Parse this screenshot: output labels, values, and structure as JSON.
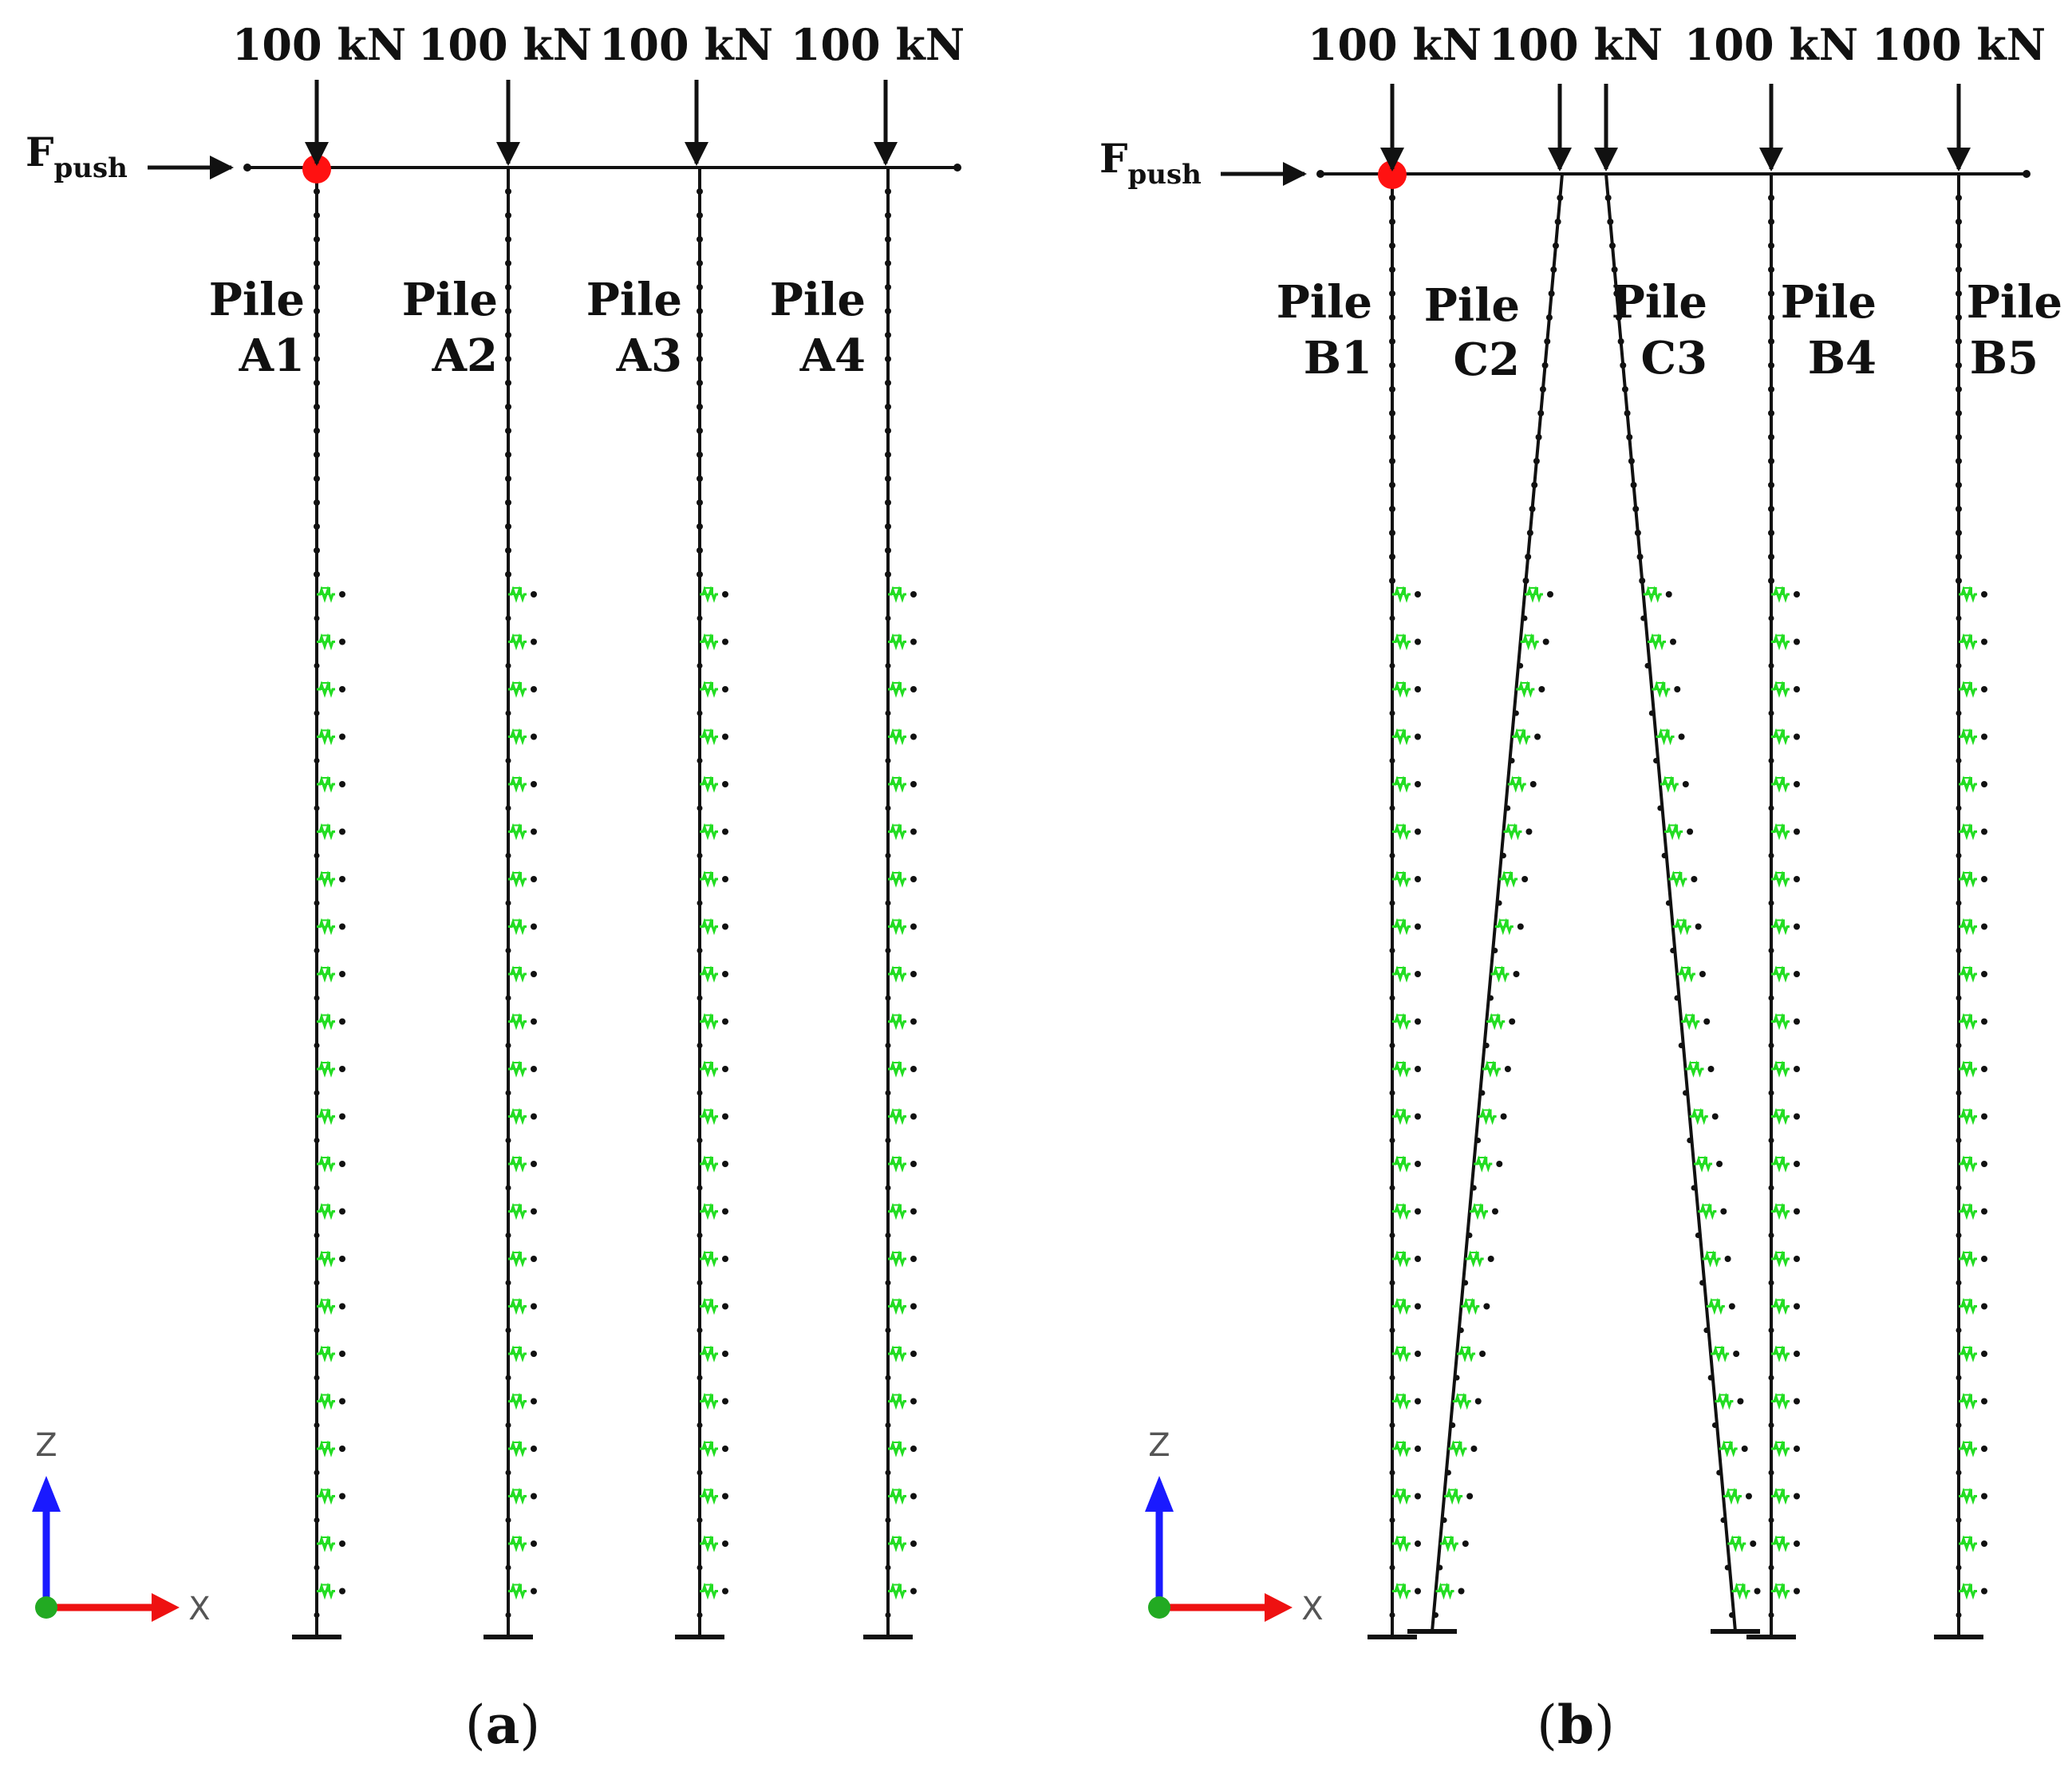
{
  "panel_a": {
    "caption_open": "(",
    "caption_letter": "a",
    "caption_close": ")",
    "loads": [
      "100 kN",
      "100 kN",
      "100 kN",
      "100 kN"
    ],
    "pile_word": "Pile",
    "piles": [
      "A1",
      "A2",
      "A3",
      "A4"
    ],
    "push_label": "F",
    "push_subscript": "push",
    "axis_z": "Z",
    "axis_x": "X"
  },
  "panel_b": {
    "caption_open": "(",
    "caption_letter": "b",
    "caption_close": ")",
    "loads": [
      "100 kN",
      "100 kN",
      "100 kN",
      "100 kN"
    ],
    "pile_word": "Pile",
    "piles": [
      "B1",
      "C2",
      "C3",
      "B4",
      "B5"
    ],
    "push_label": "F",
    "push_subscript": "push",
    "axis_z": "Z",
    "axis_x": "X"
  },
  "colors": {
    "structure": "#111111",
    "spring": "#22dd22",
    "push_node": "#ff1111",
    "axis_z": "#1a1aff",
    "axis_x": "#ee1111",
    "axis_origin": "#22aa22"
  }
}
